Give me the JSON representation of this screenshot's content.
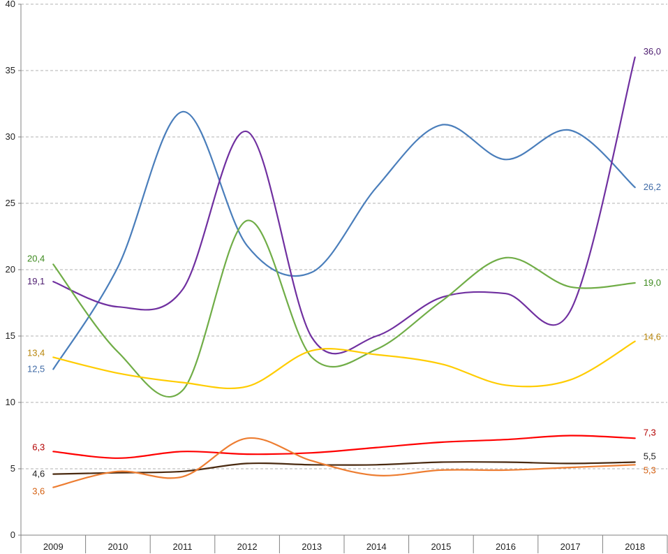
{
  "chart_data": {
    "type": "line",
    "title": "",
    "xlabel": "",
    "ylabel": "",
    "categories": [
      "2009",
      "2010",
      "2011",
      "2012",
      "2013",
      "2014",
      "2015",
      "2016",
      "2017",
      "2018"
    ],
    "ylim": [
      0,
      40
    ],
    "yticks": [
      0,
      5,
      10,
      15,
      20,
      25,
      30,
      35,
      40
    ],
    "grid": true,
    "legend": "none",
    "series": [
      {
        "color": "#4a7ebb",
        "values": [
          12.5,
          20.2,
          31.9,
          21.8,
          19.8,
          26.2,
          30.9,
          28.3,
          30.5,
          26.2
        ],
        "start_label": "12,5",
        "end_label": "26,2"
      },
      {
        "color": "#7030a0",
        "values": [
          19.1,
          17.2,
          18.5,
          30.4,
          14.9,
          15.0,
          17.9,
          18.2,
          16.9,
          36.0
        ],
        "start_label": "19,1",
        "end_label": "36,0"
      },
      {
        "color": "#70ad47",
        "values": [
          20.4,
          13.8,
          10.9,
          23.7,
          13.4,
          14.0,
          17.6,
          20.9,
          18.7,
          19.0
        ],
        "start_label": "20,4",
        "end_label": "19,0"
      },
      {
        "color": "#ffcc00",
        "values": [
          13.4,
          12.2,
          11.5,
          11.2,
          13.9,
          13.6,
          12.9,
          11.3,
          11.7,
          14.6
        ],
        "start_label": "13,4",
        "end_label": "14,6"
      },
      {
        "color": "#ff0000",
        "values": [
          6.3,
          5.8,
          6.3,
          6.1,
          6.2,
          6.6,
          7.0,
          7.2,
          7.5,
          7.3
        ],
        "start_label": "6,3",
        "end_label": "7,3"
      },
      {
        "color": "#4a2a10",
        "values": [
          4.6,
          4.7,
          4.8,
          5.4,
          5.3,
          5.3,
          5.5,
          5.5,
          5.4,
          5.5
        ],
        "start_label": "4,6",
        "end_label": "5,5"
      },
      {
        "color": "#ed7d31",
        "values": [
          3.6,
          4.8,
          4.4,
          7.3,
          5.6,
          4.5,
          4.9,
          4.9,
          5.1,
          5.3
        ],
        "start_label": "3,6",
        "end_label": "5,3"
      }
    ],
    "label_colors": {
      "blue": "#3f6aa6",
      "purple": "#4b1a6e",
      "green": "#3d8a1e",
      "yellow": "#b8860b",
      "red": "#b30000",
      "brown": "#222222",
      "orange": "#d45f10"
    }
  }
}
